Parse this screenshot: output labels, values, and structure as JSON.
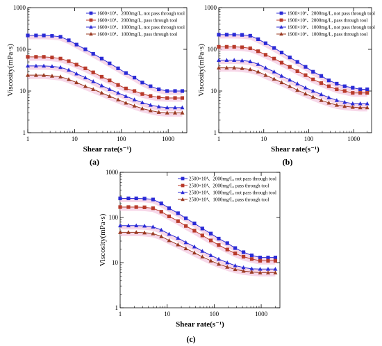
{
  "chart_data": [
    {
      "type": "line",
      "panel_label": "(a)",
      "xlabel": "Shear rate(s⁻¹)",
      "ylabel": "Viscosity(mPa·s)",
      "x_scale": "log",
      "y_scale": "log",
      "xlim": [
        1,
        2500
      ],
      "ylim": [
        1,
        1000
      ],
      "x_ticks": [
        "1",
        "10",
        "100",
        "1000"
      ],
      "y_ticks": [
        "1",
        "10",
        "100",
        "1000"
      ],
      "legend_position": "top-right",
      "x": [
        1,
        1.5,
        2.2,
        3.3,
        5,
        7.5,
        11,
        17,
        25,
        38,
        56,
        85,
        125,
        190,
        280,
        420,
        630,
        950,
        1400,
        2000
      ],
      "series": [
        {
          "name": "1600×10⁴、2000mg/L, not pass through tool",
          "marker": "square",
          "color": "#2b2bd6",
          "values": [
            215,
            215,
            215,
            210,
            200,
            165,
            130,
            100,
            78,
            60,
            46,
            35,
            27,
            21,
            16,
            13,
            11,
            10,
            10,
            10
          ]
        },
        {
          "name": "1600×10⁴、2000mg/L, pass through tool",
          "marker": "square",
          "color": "#b83a2a",
          "values": [
            66,
            66,
            66,
            64,
            60,
            52,
            43,
            35,
            28,
            22,
            18,
            14,
            11.5,
            10,
            8.5,
            7.6,
            7,
            6.8,
            6.8,
            6.8
          ]
        },
        {
          "name": "1600×10⁴、1000mg/L, not pass through tool",
          "marker": "triangle",
          "color": "#2b2bd6",
          "values": [
            40,
            40,
            40,
            39,
            37,
            32,
            26,
            21,
            17,
            13.5,
            11,
            9,
            7.5,
            6.2,
            5.3,
            4.6,
            4.2,
            4,
            4,
            4
          ]
        },
        {
          "name": "1600×10⁴、1000mg/L, pass through tool",
          "marker": "triangle",
          "color": "#9a3a22",
          "values": [
            24,
            24,
            24,
            23,
            22,
            19,
            16,
            13,
            11,
            9,
            7.5,
            6.2,
            5.2,
            4.4,
            3.8,
            3.4,
            3.1,
            3,
            3,
            3
          ]
        }
      ]
    },
    {
      "type": "line",
      "panel_label": "(b)",
      "xlabel": "Shear rate(s⁻¹)",
      "ylabel": "Viscosity(mPa·s)",
      "x_scale": "log",
      "y_scale": "log",
      "xlim": [
        1,
        2500
      ],
      "ylim": [
        1,
        1000
      ],
      "x_ticks": [
        "1",
        "10",
        "100",
        "1000"
      ],
      "y_ticks": [
        "1",
        "10",
        "100",
        "1000"
      ],
      "legend_position": "top-right",
      "x": [
        1,
        1.5,
        2.2,
        3.3,
        5,
        7.5,
        11,
        17,
        25,
        38,
        56,
        85,
        125,
        190,
        280,
        420,
        630,
        950,
        1400,
        2000
      ],
      "series": [
        {
          "name": "1900×10⁴、2000mg/L, not pass through tool",
          "marker": "square",
          "color": "#2b2bd6",
          "values": [
            225,
            225,
            225,
            222,
            212,
            175,
            140,
            108,
            84,
            64,
            50,
            38,
            29,
            23,
            18,
            15,
            13,
            12,
            11,
            11
          ]
        },
        {
          "name": "1900×10⁴、2000mg/L, pass through tool",
          "marker": "square",
          "color": "#b83a2a",
          "values": [
            115,
            115,
            115,
            112,
            106,
            90,
            74,
            60,
            48,
            38,
            30,
            24,
            19,
            15.5,
            13,
            11,
            10,
            9,
            9,
            9
          ]
        },
        {
          "name": "1900×10⁴、1000mg/L, not pass through tool",
          "marker": "triangle",
          "color": "#2b2bd6",
          "values": [
            55,
            55,
            55,
            54,
            51,
            44,
            36,
            29,
            23,
            18.5,
            15,
            12,
            10,
            8.3,
            7,
            6,
            5.4,
            5,
            5,
            5
          ]
        },
        {
          "name": "1900×10⁴、1000mg/L, pass through tool",
          "marker": "triangle",
          "color": "#9a3a22",
          "values": [
            36,
            36,
            36,
            35,
            33,
            29,
            24,
            19.5,
            16,
            13,
            10.5,
            8.6,
            7.2,
            6,
            5.2,
            4.6,
            4.3,
            4.1,
            4,
            4
          ]
        }
      ]
    },
    {
      "type": "line",
      "panel_label": "(c)",
      "xlabel": "Shear rate(s⁻¹)",
      "ylabel": "Viscosity(mPa·s)",
      "x_scale": "log",
      "y_scale": "log",
      "xlim": [
        1,
        2500
      ],
      "ylim": [
        1,
        1000
      ],
      "x_ticks": [
        "1",
        "10",
        "100",
        "1000"
      ],
      "y_ticks": [
        "1",
        "10",
        "100",
        "1000"
      ],
      "legend_position": "top-right",
      "x": [
        1,
        1.5,
        2.2,
        3.3,
        5,
        7.5,
        11,
        17,
        25,
        38,
        56,
        85,
        125,
        190,
        280,
        420,
        630,
        950,
        1400,
        2000
      ],
      "series": [
        {
          "name": "2500×10⁴、2000mg/L, not pass through tool",
          "marker": "square",
          "color": "#2b2bd6",
          "values": [
            265,
            265,
            265,
            262,
            250,
            205,
            160,
            124,
            96,
            74,
            57,
            44,
            34,
            27,
            21,
            17,
            14.5,
            13,
            13,
            13
          ]
        },
        {
          "name": "2500×10⁴、2000mg/L, pass through tool",
          "marker": "square",
          "color": "#b83a2a",
          "values": [
            170,
            170,
            170,
            168,
            160,
            134,
            106,
            83,
            65,
            51,
            40,
            31,
            24.5,
            19.5,
            16,
            13.5,
            12,
            11,
            11,
            11
          ]
        },
        {
          "name": "2500×10⁴、1000mg/L, not pass through tool",
          "marker": "triangle",
          "color": "#2b2bd6",
          "values": [
            66,
            66,
            66,
            65,
            62,
            53,
            43,
            35,
            28,
            22.5,
            18,
            14.5,
            12,
            10,
            8.6,
            7.8,
            7.3,
            7.2,
            7.2,
            7.2
          ]
        },
        {
          "name": "2500×10⁴、1000mg/L, pass through tool",
          "marker": "triangle",
          "color": "#9a3a22",
          "values": [
            47,
            47,
            47,
            46,
            44,
            38,
            31,
            25,
            20.5,
            16.5,
            13.5,
            11,
            9.3,
            8,
            7.1,
            6.5,
            6.2,
            6,
            6,
            6
          ]
        }
      ]
    }
  ]
}
